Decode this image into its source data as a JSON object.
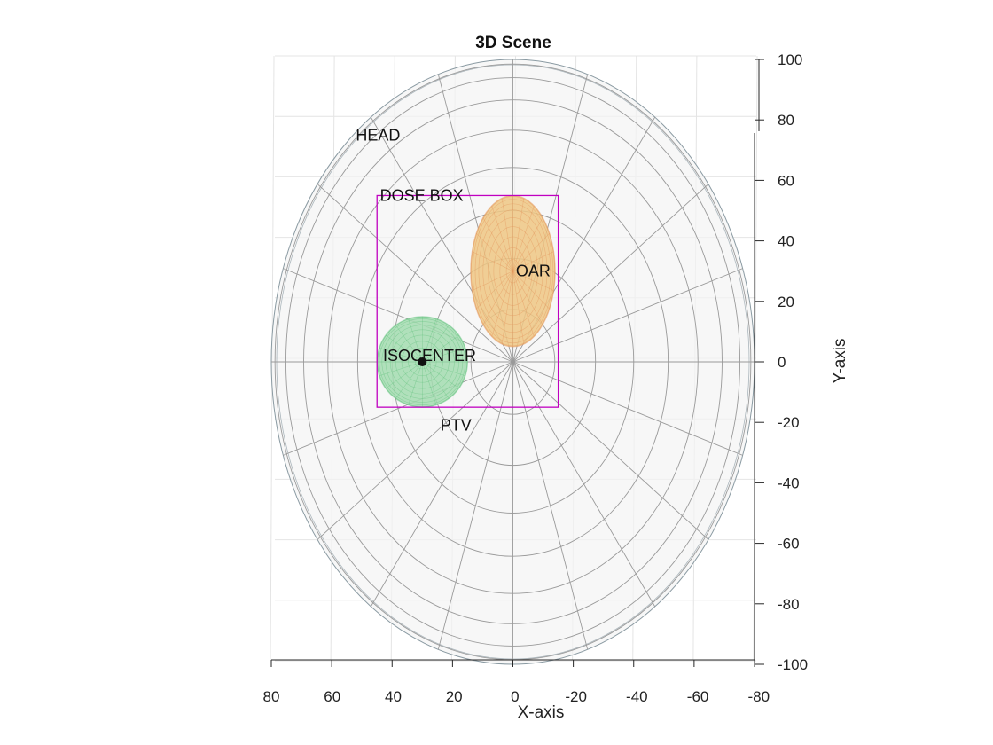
{
  "chart_data": {
    "type": "scatter",
    "title": "3D Scene",
    "xlabel": "X-axis",
    "ylabel": "Y-axis",
    "xlim": [
      80,
      -80
    ],
    "ylim": [
      -100,
      100
    ],
    "x_reversed": true,
    "grid": true,
    "x_ticks": [
      "80",
      "60",
      "40",
      "20",
      "0",
      "-20",
      "-40",
      "-60",
      "-80"
    ],
    "y_ticks": [
      "100",
      "80",
      "60",
      "40",
      "20",
      "0",
      "-20",
      "-40",
      "-60",
      "-80",
      "-100"
    ],
    "objects": [
      {
        "name": "HEAD",
        "shape": "ellipsoid",
        "center": [
          0,
          0
        ],
        "radii": [
          80,
          100
        ],
        "color": "#f3f4f4",
        "edge_color": "#8a9aa2"
      },
      {
        "name": "OAR",
        "shape": "ellipsoid",
        "center": [
          0,
          30
        ],
        "radii": [
          14,
          25
        ],
        "color": "#efc784",
        "edge_color": "#e3935a"
      },
      {
        "name": "PTV",
        "shape": "sphere",
        "center": [
          30,
          0
        ],
        "radii": [
          15,
          15
        ],
        "color": "#a3dcb0",
        "edge_color": "#5bbf77"
      },
      {
        "name": "DOSE BOX",
        "shape": "box",
        "x_range": [
          45,
          -15
        ],
        "y_range": [
          -15,
          55
        ],
        "color": "#c000c0"
      }
    ],
    "points": [
      {
        "name": "ISOCENTER",
        "x": 30,
        "y": 0,
        "color": "#111111"
      }
    ],
    "annotations": [
      {
        "text": "HEAD",
        "x": 52,
        "y": 75
      },
      {
        "text": "DOSE BOX",
        "x": 44,
        "y": 55
      },
      {
        "text": "OAR",
        "x": -1,
        "y": 30
      },
      {
        "text": "ISOCENTER",
        "x": 43,
        "y": 2
      },
      {
        "text": "PTV",
        "x": 24,
        "y": -21
      }
    ]
  }
}
